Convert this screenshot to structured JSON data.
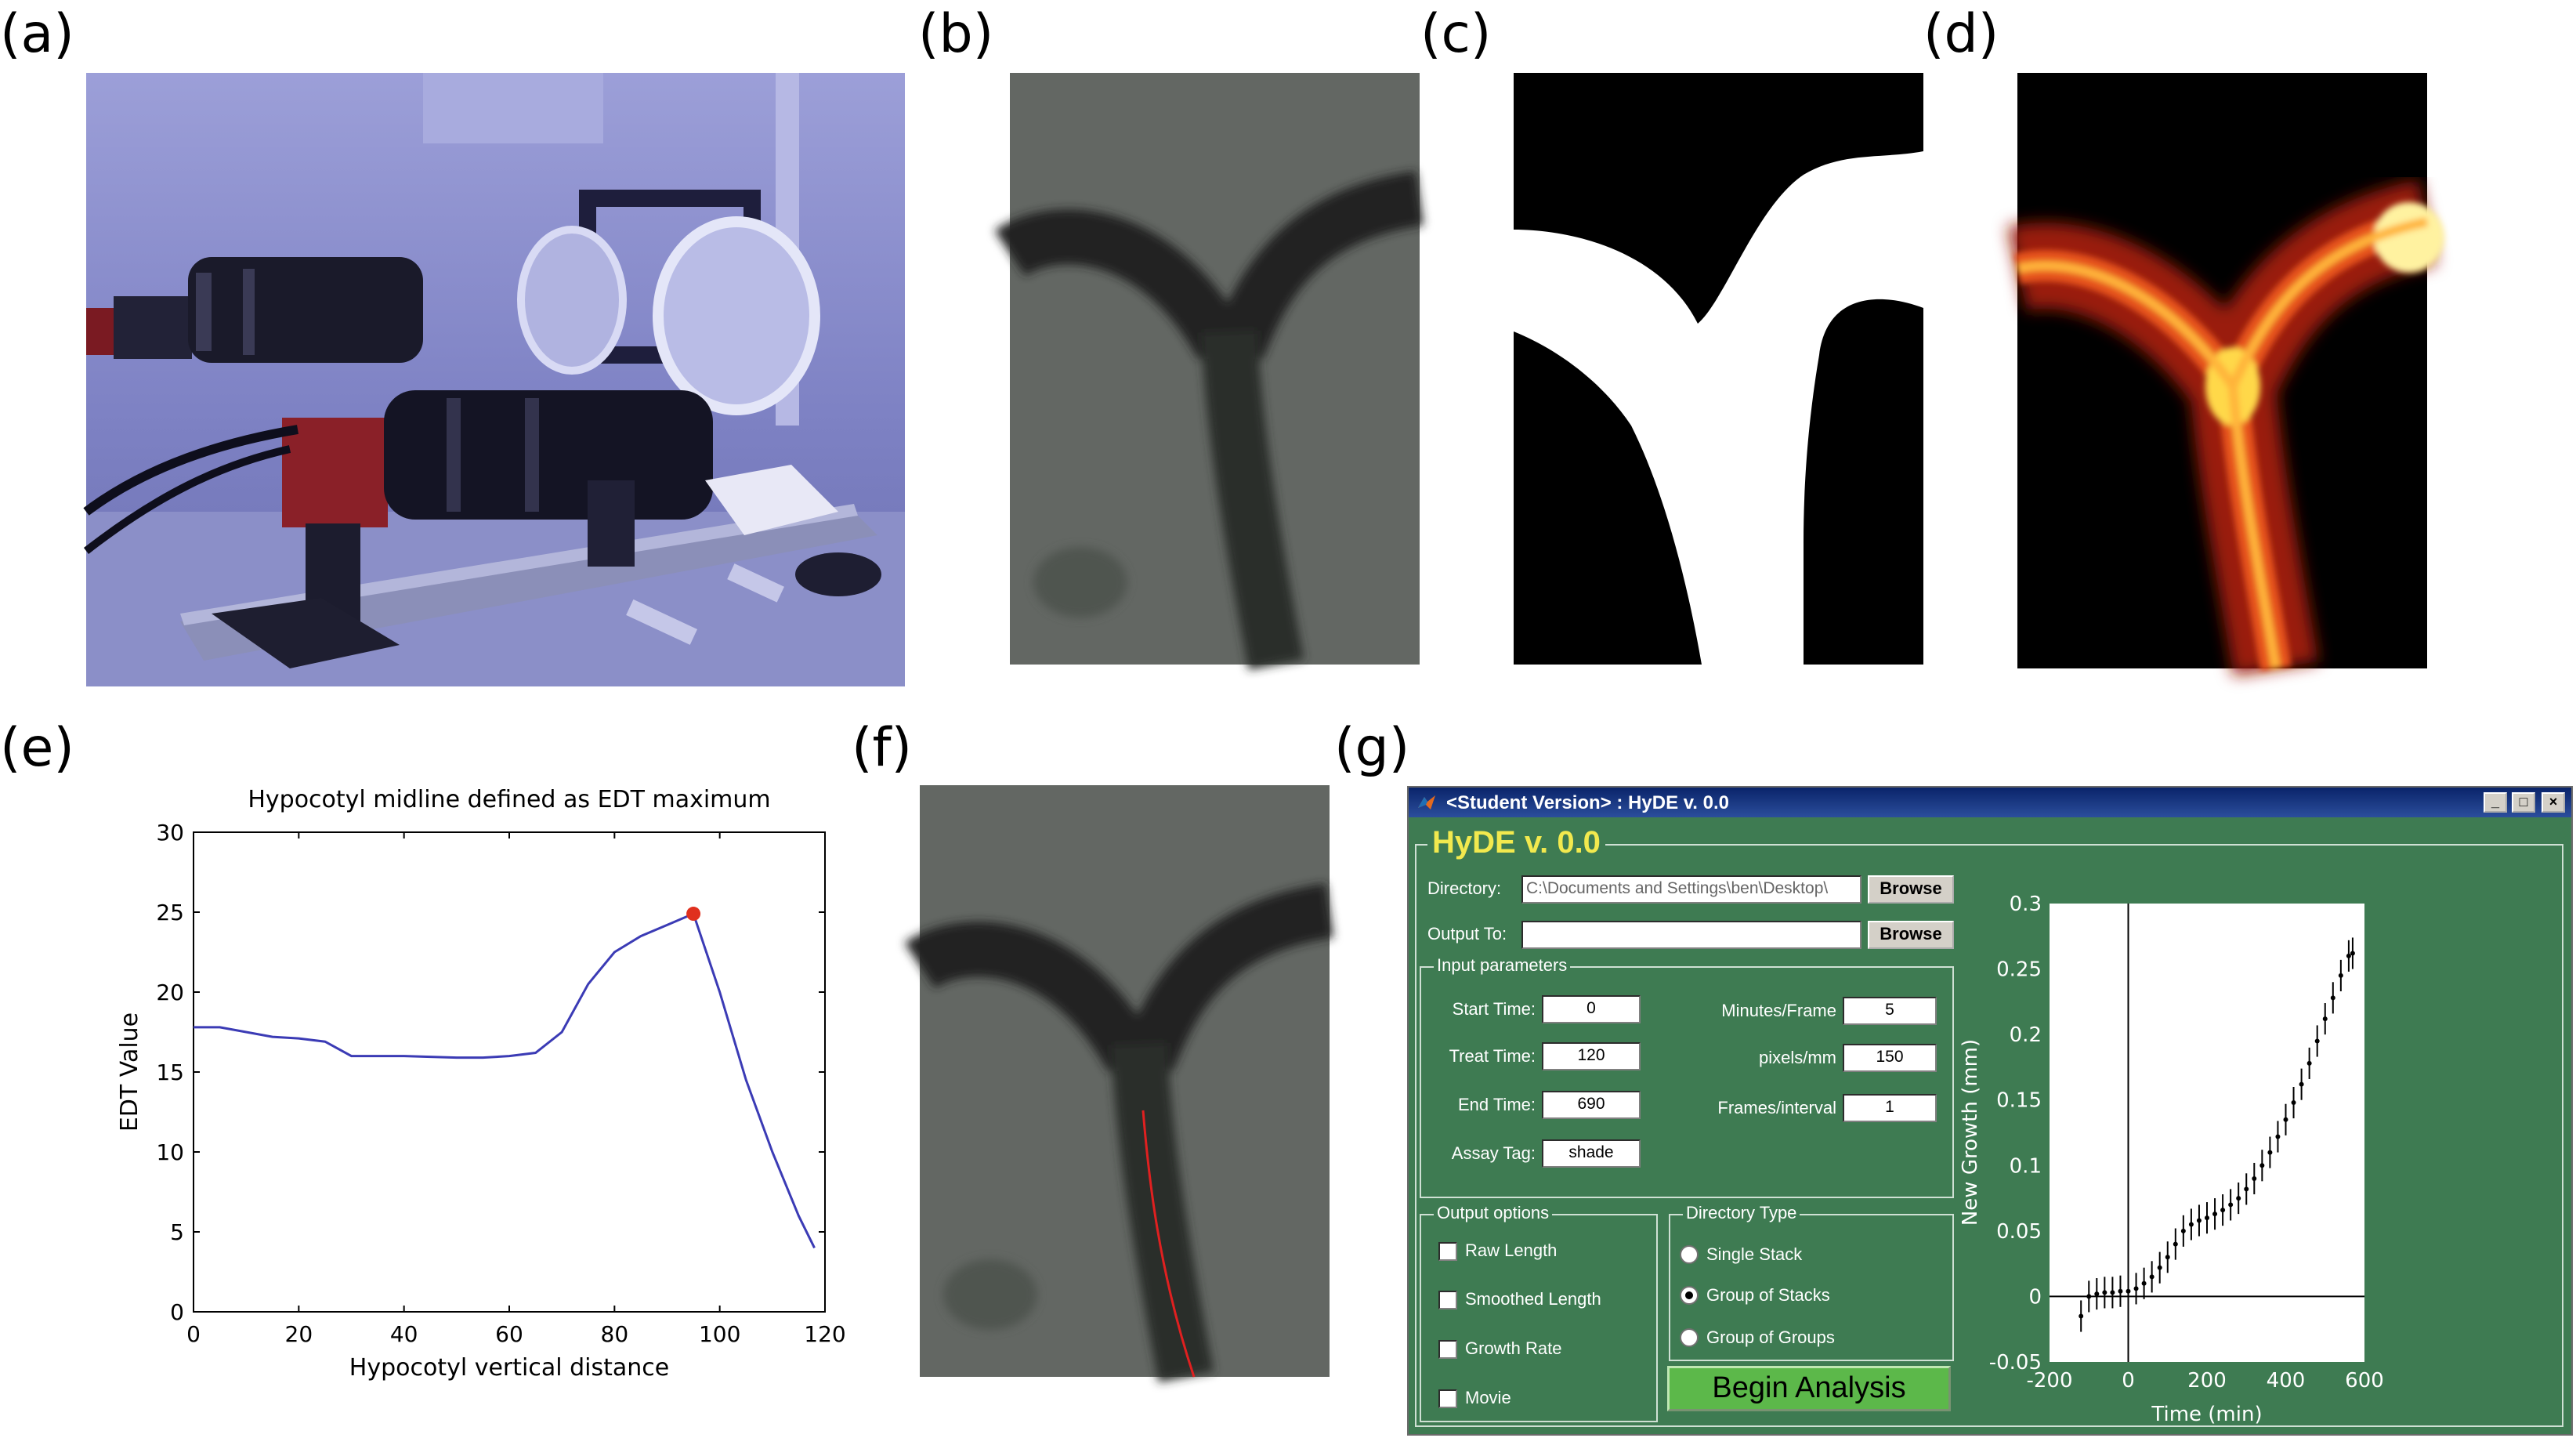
{
  "panel_labels": [
    "(a)",
    "(b)",
    "(c)",
    "(d)",
    "(e)",
    "(f)",
    "(g)"
  ],
  "chart_data": [
    {
      "type": "line",
      "title": "Hypocotyl midline defined as EDT maximum",
      "xlabel": "Hypocotyl vertical distance",
      "ylabel": "EDT Value",
      "xlim": [
        0,
        120
      ],
      "ylim": [
        0,
        30
      ],
      "xticks": [
        "0",
        "20",
        "40",
        "60",
        "80",
        "100",
        "120"
      ],
      "yticks": [
        "0",
        "5",
        "10",
        "15",
        "20",
        "25",
        "30"
      ],
      "color": "#3b3bb5",
      "marker_color": "#e0301e",
      "x": [
        0,
        5,
        10,
        15,
        20,
        25,
        30,
        40,
        50,
        55,
        60,
        65,
        70,
        75,
        80,
        85,
        90,
        95,
        100,
        105,
        110,
        115,
        118
      ],
      "y": [
        17.8,
        17.8,
        17.5,
        17.2,
        17.1,
        16.9,
        16.0,
        16.0,
        15.9,
        15.9,
        16.0,
        16.2,
        17.5,
        20.5,
        22.5,
        23.5,
        24.2,
        24.9,
        20.0,
        14.5,
        10.0,
        6.0,
        4.0
      ],
      "highlight": {
        "x": 95,
        "y": 24.9
      }
    },
    {
      "type": "scatter",
      "title": "",
      "xlabel": "Time (min)",
      "ylabel": "New Growth (mm)",
      "xlim": [
        -200,
        600
      ],
      "ylim": [
        -0.05,
        0.3
      ],
      "xticks": [
        "-200",
        "0",
        "200",
        "400",
        "600"
      ],
      "yticks": [
        "-0.05",
        "0",
        "0.05",
        "0.1",
        "0.15",
        "0.2",
        "0.25",
        "0.3"
      ],
      "x": [
        -120,
        -100,
        -80,
        -60,
        -40,
        -20,
        0,
        20,
        40,
        60,
        80,
        100,
        120,
        140,
        160,
        180,
        200,
        220,
        240,
        260,
        280,
        300,
        320,
        340,
        360,
        380,
        400,
        420,
        440,
        460,
        480,
        500,
        520,
        540,
        560,
        570
      ],
      "y": [
        -0.015,
        0.0,
        0.002,
        0.003,
        0.003,
        0.004,
        0.004,
        0.006,
        0.01,
        0.015,
        0.022,
        0.03,
        0.04,
        0.05,
        0.055,
        0.058,
        0.06,
        0.063,
        0.066,
        0.07,
        0.075,
        0.082,
        0.09,
        0.1,
        0.11,
        0.122,
        0.135,
        0.148,
        0.162,
        0.178,
        0.195,
        0.212,
        0.228,
        0.245,
        0.26,
        0.262
      ],
      "error": 0.012
    }
  ],
  "gui": {
    "window_title": "<Student Version> : HyDE v. 0.0",
    "app_title": "HyDE v. 0.0",
    "directory_label": "Directory:",
    "directory_value": "C:\\Documents and Settings\\ben\\Desktop\\",
    "output_label": "Output To:",
    "output_value": "",
    "browse_label": "Browse",
    "input_params_label": "Input parameters",
    "start_time_label": "Start Time:",
    "start_time_value": "0",
    "treat_time_label": "Treat Time:",
    "treat_time_value": "120",
    "end_time_label": "End Time:",
    "end_time_value": "690",
    "assay_tag_label": "Assay Tag:",
    "assay_tag_value": "shade",
    "minutes_frame_label": "Minutes/Frame",
    "minutes_frame_value": "5",
    "pixels_mm_label": "pixels/mm",
    "pixels_mm_value": "150",
    "frames_interval_label": "Frames/interval",
    "frames_interval_value": "1",
    "output_options_label": "Output options",
    "output_options": [
      "Raw Length",
      "Smoothed Length",
      "Growth Rate",
      "Movie"
    ],
    "directory_type_label": "Directory Type",
    "directory_types": [
      "Single Stack",
      "Group of Stacks",
      "Group of Groups"
    ],
    "directory_type_selected": 1,
    "begin_label": "Begin Analysis"
  }
}
